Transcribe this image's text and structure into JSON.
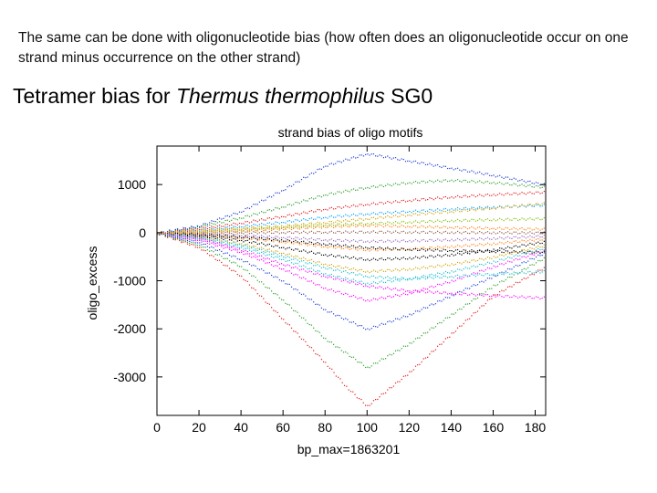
{
  "slide": {
    "intro": "The same can be done with oligonucleotide bias (how often does an oligonucleotide occur on one strand minus occurrence on the other strand)",
    "heading_prefix": "Tetramer bias for ",
    "heading_organism": "Thermus thermophilus",
    "heading_suffix": " SG0"
  },
  "chart_data": {
    "type": "scatter",
    "title": "strand bias of oligo motifs",
    "xlabel": "bp_max=1863201",
    "ylabel": "oligo_excess",
    "xlim": [
      0,
      185
    ],
    "ylim": [
      -3800,
      1800
    ],
    "xticks": [
      0,
      20,
      40,
      60,
      80,
      100,
      120,
      140,
      160,
      180
    ],
    "yticks": [
      1000,
      0,
      -1000,
      -2000,
      -3000
    ],
    "grid": false,
    "legend": "none",
    "colors": [
      "#e41a1c",
      "#2ca02c",
      "#1f3fd6",
      "#ff00ff",
      "#17becf",
      "#d4a000",
      "#000000",
      "#ff7f0e",
      "#9467bd",
      "#8c564b",
      "#7fbf00",
      "#00a0ff"
    ],
    "series": [
      {
        "x": [
          0,
          20,
          40,
          60,
          80,
          90,
          100,
          120,
          140,
          160,
          185
        ],
        "values": [
          0,
          -300,
          -900,
          -1800,
          -2700,
          -3200,
          -3600,
          -2900,
          -2100,
          -1300,
          -700
        ]
      },
      {
        "x": [
          0,
          20,
          40,
          60,
          80,
          100,
          120,
          140,
          160,
          185
        ],
        "values": [
          0,
          -250,
          -700,
          -1400,
          -2200,
          -2800,
          -2300,
          -1700,
          -1100,
          -500
        ]
      },
      {
        "x": [
          0,
          20,
          40,
          60,
          80,
          100,
          120,
          140,
          160,
          185
        ],
        "values": [
          0,
          -200,
          -550,
          -1000,
          -1600,
          -2000,
          -1700,
          -1300,
          -900,
          -400
        ]
      },
      {
        "x": [
          0,
          20,
          40,
          60,
          80,
          100,
          120,
          140,
          160,
          185
        ],
        "values": [
          0,
          -150,
          -400,
          -750,
          -1150,
          -1400,
          -1250,
          -1000,
          -700,
          -350
        ]
      },
      {
        "x": [
          0,
          20,
          40,
          60,
          80,
          100,
          120,
          140,
          160,
          185
        ],
        "values": [
          0,
          -120,
          -300,
          -550,
          -850,
          -1050,
          -950,
          -800,
          -600,
          -300
        ]
      },
      {
        "x": [
          0,
          20,
          40,
          60,
          80,
          100,
          120,
          140,
          160,
          185
        ],
        "values": [
          0,
          -90,
          -220,
          -420,
          -650,
          -800,
          -750,
          -650,
          -500,
          -250
        ]
      },
      {
        "x": [
          0,
          20,
          40,
          60,
          80,
          100,
          120,
          140,
          160,
          185
        ],
        "values": [
          0,
          -60,
          -150,
          -300,
          -450,
          -550,
          -520,
          -450,
          -350,
          -180
        ]
      },
      {
        "x": [
          0,
          20,
          40,
          60,
          80,
          100,
          120,
          140,
          160,
          185
        ],
        "values": [
          0,
          -40,
          -100,
          -180,
          -280,
          -350,
          -330,
          -280,
          -220,
          -120
        ]
      },
      {
        "x": [
          0,
          20,
          40,
          60,
          80,
          100,
          120,
          140,
          160,
          185
        ],
        "values": [
          0,
          -20,
          -50,
          -90,
          -140,
          -170,
          -160,
          -140,
          -110,
          -60
        ]
      },
      {
        "x": [
          0,
          20,
          40,
          60,
          80,
          100,
          120,
          140,
          160,
          185
        ],
        "values": [
          0,
          5,
          10,
          15,
          20,
          25,
          20,
          15,
          10,
          5
        ]
      },
      {
        "x": [
          0,
          20,
          40,
          60,
          80,
          100,
          120,
          140,
          160,
          185
        ],
        "values": [
          0,
          30,
          70,
          120,
          170,
          200,
          230,
          260,
          280,
          300
        ]
      },
      {
        "x": [
          0,
          20,
          40,
          60,
          80,
          100,
          120,
          140,
          160,
          185
        ],
        "values": [
          0,
          60,
          140,
          230,
          330,
          400,
          450,
          500,
          540,
          580
        ]
      },
      {
        "x": [
          0,
          20,
          40,
          60,
          80,
          100,
          120,
          140,
          160,
          185
        ],
        "values": [
          0,
          90,
          210,
          350,
          500,
          600,
          680,
          750,
          800,
          850
        ]
      },
      {
        "x": [
          0,
          20,
          40,
          60,
          80,
          100,
          120,
          140,
          160,
          185
        ],
        "values": [
          0,
          130,
          320,
          550,
          800,
          950,
          1050,
          1100,
          1050,
          950
        ]
      },
      {
        "x": [
          0,
          20,
          40,
          60,
          80,
          100,
          120,
          140,
          160,
          185
        ],
        "values": [
          0,
          150,
          450,
          900,
          1400,
          1650,
          1500,
          1350,
          1200,
          1000
        ]
      },
      {
        "x": [
          0,
          20,
          40,
          60,
          80,
          100,
          120,
          140,
          160,
          185
        ],
        "values": [
          0,
          -100,
          -350,
          -650,
          -900,
          -1100,
          -1200,
          -1250,
          -1300,
          -1350
        ]
      },
      {
        "x": [
          0,
          20,
          40,
          60,
          80,
          100,
          120,
          140,
          160,
          185
        ],
        "values": [
          0,
          -80,
          -250,
          -480,
          -720,
          -900,
          -950,
          -900,
          -850,
          -800
        ]
      },
      {
        "x": [
          0,
          20,
          40,
          60,
          80,
          100,
          120,
          140,
          160,
          185
        ],
        "values": [
          0,
          50,
          100,
          150,
          220,
          300,
          380,
          450,
          520,
          620
        ]
      },
      {
        "x": [
          0,
          20,
          40,
          60,
          80,
          100,
          120,
          140,
          160,
          185
        ],
        "values": [
          0,
          -30,
          -80,
          -150,
          -230,
          -300,
          -340,
          -360,
          -380,
          -400
        ]
      },
      {
        "x": [
          0,
          20,
          40,
          60,
          80,
          100,
          120,
          140,
          160,
          185
        ],
        "values": [
          0,
          20,
          50,
          90,
          130,
          160,
          140,
          120,
          100,
          80
        ]
      }
    ]
  }
}
